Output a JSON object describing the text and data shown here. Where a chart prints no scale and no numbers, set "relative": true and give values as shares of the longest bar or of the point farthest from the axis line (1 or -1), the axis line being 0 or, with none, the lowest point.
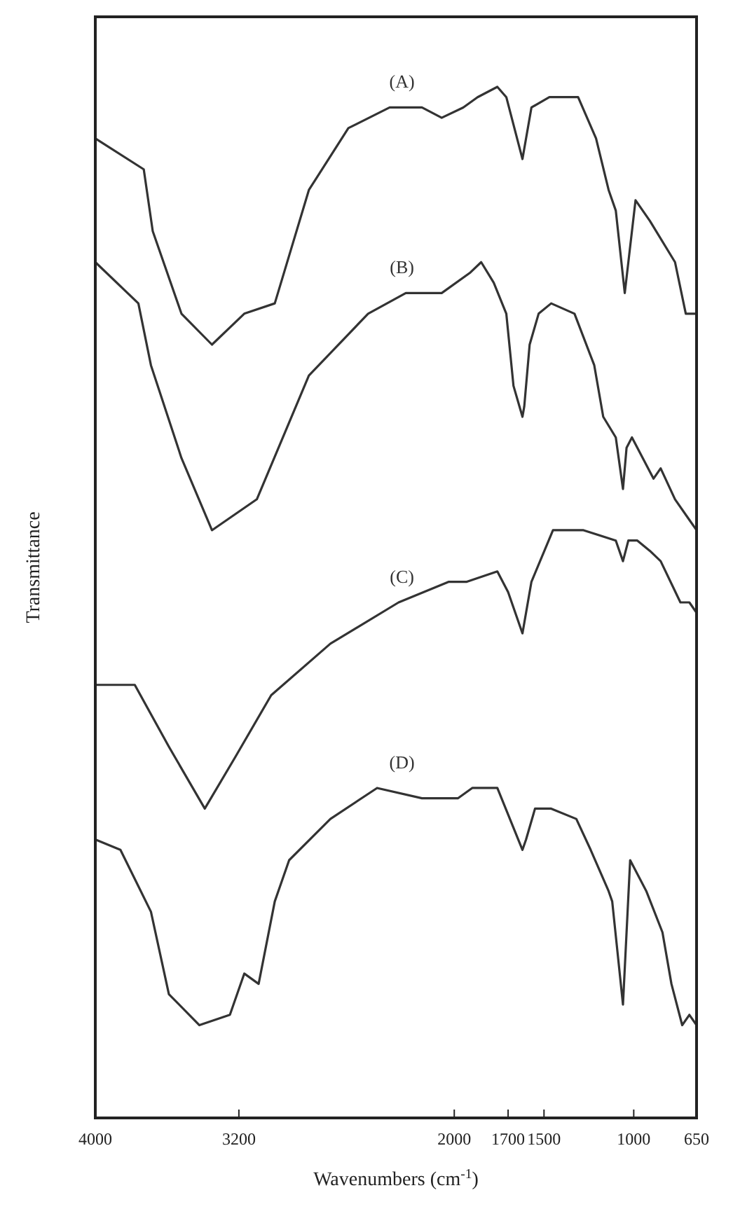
{
  "chart_data": {
    "type": "line",
    "relative": true,
    "xlabel": "Wavenumbers (cm$^{-1}$)",
    "ylabel": "Transmittance",
    "xlim": [
      4000,
      650
    ],
    "xticks": [
      4000,
      3200,
      2000,
      1700,
      1500,
      1000,
      650
    ],
    "grid": false,
    "marker": "none",
    "line_style": "solid",
    "series": [
      {
        "name": "(A)",
        "color": "#333333",
        "x": [
          4000,
          3730,
          3680,
          3520,
          3350,
          3170,
          3000,
          2810,
          2590,
          2360,
          2180,
          2070,
          1950,
          1870,
          1760,
          1710,
          1620,
          1570,
          1470,
          1310,
          1210,
          1140,
          1100,
          1050,
          990,
          910,
          770,
          710,
          650
        ],
        "values": [
          0.95,
          0.92,
          0.86,
          0.78,
          0.75,
          0.78,
          0.79,
          0.9,
          0.96,
          0.98,
          0.98,
          0.97,
          0.98,
          0.99,
          1,
          0.99,
          0.93,
          0.98,
          0.99,
          0.99,
          0.95,
          0.9,
          0.88,
          0.8,
          0.89,
          0.87,
          0.83,
          0.78,
          0.78
        ]
      },
      {
        "name": "(B)",
        "color": "#333333",
        "x": [
          4000,
          3760,
          3690,
          3520,
          3350,
          3100,
          2810,
          2480,
          2270,
          2070,
          1910,
          1850,
          1780,
          1710,
          1670,
          1620,
          1610,
          1580,
          1530,
          1460,
          1330,
          1220,
          1170,
          1100,
          1060,
          1040,
          1010,
          890,
          850,
          770,
          690,
          650
        ],
        "values": [
          0.83,
          0.79,
          0.73,
          0.64,
          0.57,
          0.6,
          0.72,
          0.78,
          0.8,
          0.8,
          0.82,
          0.83,
          0.81,
          0.78,
          0.71,
          0.68,
          0.69,
          0.75,
          0.78,
          0.79,
          0.78,
          0.73,
          0.68,
          0.66,
          0.61,
          0.65,
          0.66,
          0.62,
          0.63,
          0.6,
          0.58,
          0.57
        ]
      },
      {
        "name": "(C)",
        "color": "#333333",
        "x": [
          4000,
          3780,
          3590,
          3390,
          3220,
          3020,
          2690,
          2310,
          2030,
          1930,
          1760,
          1700,
          1620,
          1570,
          1450,
          1280,
          1100,
          1060,
          1030,
          980,
          910,
          850,
          740,
          690,
          650
        ],
        "values": [
          0.42,
          0.42,
          0.36,
          0.3,
          0.35,
          0.41,
          0.46,
          0.5,
          0.52,
          0.52,
          0.53,
          0.51,
          0.47,
          0.52,
          0.57,
          0.57,
          0.56,
          0.54,
          0.56,
          0.56,
          0.55,
          0.54,
          0.5,
          0.5,
          0.49
        ]
      },
      {
        "name": "(D)",
        "color": "#333333",
        "x": [
          4000,
          3860,
          3690,
          3590,
          3420,
          3250,
          3170,
          3090,
          3000,
          2920,
          2690,
          2430,
          2180,
          1980,
          1900,
          1760,
          1620,
          1600,
          1550,
          1460,
          1320,
          1240,
          1140,
          1120,
          1060,
          1020,
          930,
          840,
          790,
          730,
          690,
          650
        ],
        "values": [
          0.27,
          0.26,
          0.2,
          0.12,
          0.09,
          0.1,
          0.14,
          0.13,
          0.21,
          0.25,
          0.29,
          0.32,
          0.31,
          0.31,
          0.32,
          0.32,
          0.26,
          0.27,
          0.3,
          0.3,
          0.29,
          0.26,
          0.22,
          0.21,
          0.11,
          0.25,
          0.22,
          0.18,
          0.13,
          0.09,
          0.1,
          0.09
        ]
      }
    ]
  }
}
